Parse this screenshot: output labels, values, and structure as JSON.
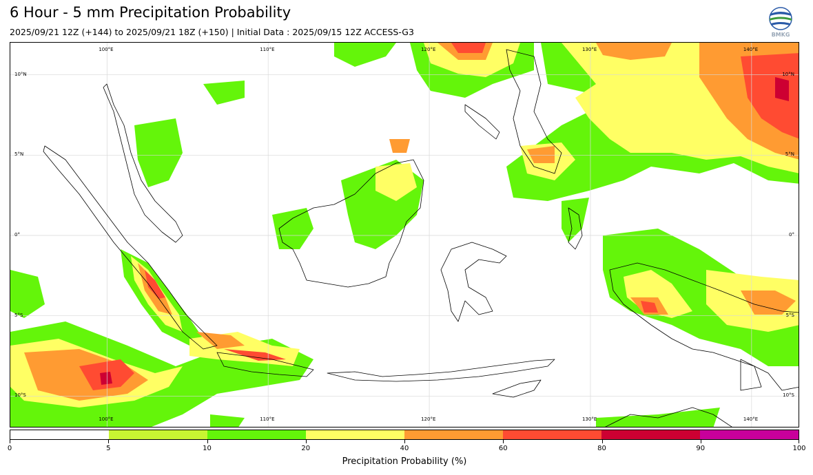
{
  "header": {
    "title": "6 Hour - 5 mm Precipitation Probability",
    "subtitle": "2025/09/21 12Z (+144) to 2025/09/21 18Z (+150) | Initial Data : 2025/09/15 12Z ACCESS-G3",
    "logo_text": "BMKG"
  },
  "map": {
    "lon_range": [
      94,
      143
    ],
    "lat_range": [
      -12,
      12
    ],
    "lon_labels": [
      "100°E",
      "110°E",
      "120°E",
      "130°E",
      "140°E"
    ],
    "lat_labels": [
      "10°N",
      "5°N",
      "0°",
      "5°S",
      "10°S"
    ],
    "lon_values": [
      100,
      110,
      120,
      130,
      140
    ],
    "lat_values": [
      10,
      5,
      0,
      -5,
      -10
    ]
  },
  "colorbar": {
    "title": "Precipitation Probability (%)",
    "ticks": [
      "0",
      "5",
      "10",
      "20",
      "40",
      "60",
      "80",
      "90",
      "100"
    ],
    "colors": [
      "#ffffff",
      "#c8f532",
      "#64f50a",
      "#ffff64",
      "#ff9b32",
      "#ff4b32",
      "#cd0032",
      "#c8009b"
    ]
  }
}
